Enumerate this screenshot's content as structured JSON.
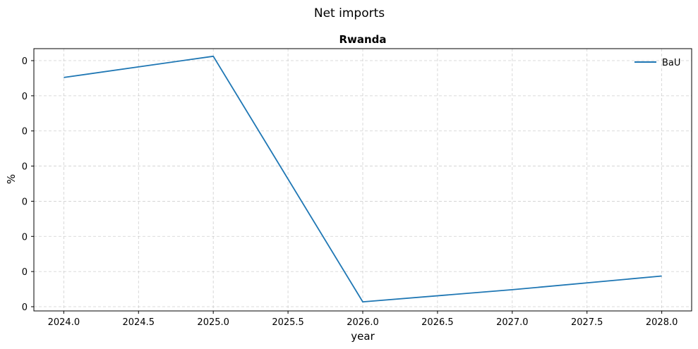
{
  "figure": {
    "suptitle": "Net imports"
  },
  "chart_data": {
    "type": "line",
    "title": "Rwanda",
    "xlabel": "year",
    "ylabel": "%",
    "x_ticks": [
      "2024.0",
      "2024.5",
      "2025.0",
      "2025.5",
      "2026.0",
      "2026.5",
      "2027.0",
      "2027.5",
      "2028.0"
    ],
    "y_ticks": [
      "0",
      "0",
      "0",
      "0",
      "0",
      "0",
      "0",
      "0"
    ],
    "xlim": [
      2023.8,
      2028.2
    ],
    "ylim": [
      -0.0011,
      0.0162
    ],
    "grid": true,
    "legend_position": "top-right",
    "x": [
      2024,
      2025,
      2026,
      2027,
      2028
    ],
    "series": [
      {
        "name": "BaU",
        "color": "#1f77b4",
        "values": [
          0.0143,
          0.0157,
          -0.0005,
          0.0003,
          0.0012
        ]
      }
    ]
  }
}
